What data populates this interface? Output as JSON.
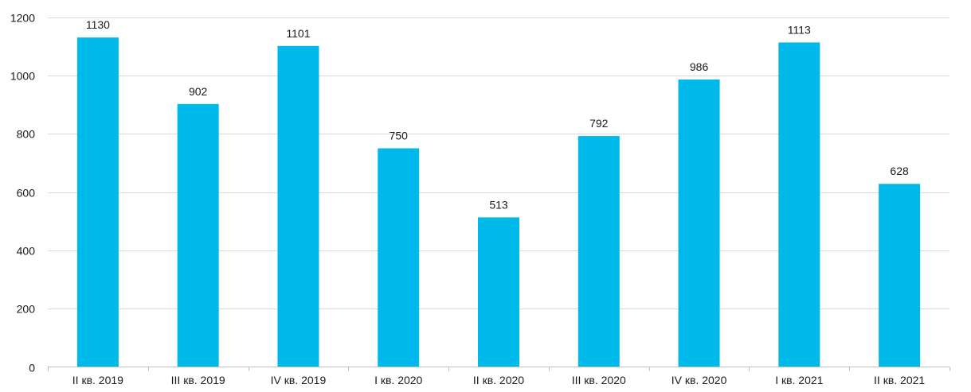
{
  "chart_data": {
    "type": "bar",
    "categories": [
      "II кв. 2019",
      "III кв. 2019",
      "IV кв. 2019",
      "I кв. 2020",
      "II кв. 2020",
      "III кв. 2020",
      "IV кв. 2020",
      "I кв. 2021",
      "II кв. 2021"
    ],
    "values": [
      1130,
      902,
      1101,
      750,
      513,
      792,
      986,
      1113,
      628
    ],
    "data_labels": [
      "1130",
      "902",
      "1101",
      "750",
      "513",
      "792",
      "986",
      "1113",
      "628"
    ],
    "y_ticks": [
      0,
      200,
      400,
      600,
      800,
      1000,
      1200
    ],
    "ylim": [
      0,
      1200
    ],
    "grid": true,
    "legend": "none",
    "bar_color": "#00b9eb",
    "title": "",
    "xlabel": "",
    "ylabel": ""
  }
}
